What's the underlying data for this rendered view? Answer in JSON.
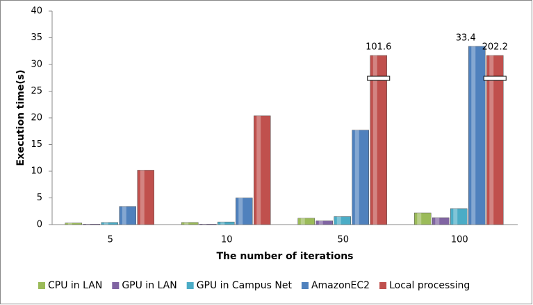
{
  "chart_data": {
    "type": "bar",
    "xlabel": "The number of iterations",
    "ylabel": "Execution time(s)",
    "categories": [
      "5",
      "10",
      "50",
      "100"
    ],
    "series": [
      {
        "name": "CPU in LAN",
        "color": "#9bbb59",
        "values": [
          0.3,
          0.4,
          1.2,
          2.2
        ]
      },
      {
        "name": "GPU in LAN",
        "color": "#8064a2",
        "values": [
          0.1,
          0.1,
          0.7,
          1.3
        ]
      },
      {
        "name": "GPU in Campus Net",
        "color": "#4bacc6",
        "values": [
          0.4,
          0.5,
          1.5,
          3.0
        ]
      },
      {
        "name": "AmazonEC2",
        "color": "#4f81bd",
        "values": [
          3.4,
          5.0,
          17.7,
          33.4
        ],
        "value_labels": [
          null,
          null,
          null,
          "33.4"
        ]
      },
      {
        "name": "Local processing",
        "color": "#c0504d",
        "values": [
          10.2,
          20.4,
          101.6,
          202.2
        ],
        "value_labels": [
          null,
          null,
          "101.6",
          "202.2"
        ]
      }
    ],
    "ylim": [
      0,
      40
    ],
    "yticks": [
      0,
      5,
      10,
      15,
      20,
      25,
      30,
      35,
      40
    ],
    "legend": "bottom"
  }
}
